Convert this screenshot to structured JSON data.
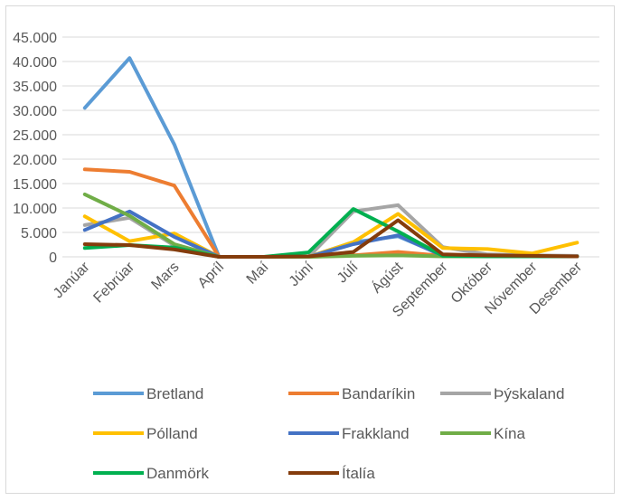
{
  "chart_data": {
    "type": "line",
    "title": "",
    "xlabel": "",
    "ylabel": "",
    "ylim": [
      0,
      45000
    ],
    "y_ticks": [
      "0",
      "5.000",
      "10.000",
      "15.000",
      "20.000",
      "25.000",
      "30.000",
      "35.000",
      "40.000",
      "45.000"
    ],
    "categories": [
      "Janúar",
      "Febrúar",
      "Mars",
      "Apríl",
      "Maí",
      "Júní",
      "Júlí",
      "Ágúst",
      "September",
      "Október",
      "Nóvember",
      "Desember"
    ],
    "grid": true,
    "legend_position": "bottom",
    "series": [
      {
        "name": "Bretland",
        "color": "#5B9BD5",
        "values": [
          30500,
          40700,
          23000,
          0,
          0,
          0,
          3000,
          4200,
          300,
          200,
          100,
          100
        ]
      },
      {
        "name": "Bandaríkin",
        "color": "#ED7D31",
        "values": [
          17900,
          17400,
          14600,
          0,
          0,
          0,
          300,
          1000,
          200,
          100,
          100,
          100
        ]
      },
      {
        "name": "Þýskaland",
        "color": "#A5A5A5",
        "values": [
          6500,
          8000,
          2300,
          0,
          0,
          0,
          9300,
          10600,
          2000,
          500,
          300,
          200
        ]
      },
      {
        "name": "Pólland",
        "color": "#FFC000",
        "values": [
          8300,
          3200,
          4800,
          0,
          0,
          0,
          3000,
          8800,
          1800,
          1600,
          700,
          2900
        ]
      },
      {
        "name": "Frakkland",
        "color": "#4472C4",
        "values": [
          5500,
          9300,
          4100,
          0,
          0,
          0,
          2600,
          4400,
          200,
          100,
          100,
          100
        ]
      },
      {
        "name": "Kína",
        "color": "#70AD47",
        "values": [
          12800,
          8400,
          2600,
          0,
          0,
          0,
          200,
          300,
          100,
          100,
          100,
          100
        ]
      },
      {
        "name": "Danmörk",
        "color": "#00B050",
        "values": [
          1800,
          2400,
          1900,
          0,
          0,
          900,
          9800,
          5200,
          200,
          100,
          100,
          100
        ]
      },
      {
        "name": "Ítalía",
        "color": "#843C0C",
        "values": [
          2600,
          2400,
          1500,
          0,
          0,
          100,
          1000,
          7500,
          500,
          300,
          200,
          100
        ]
      }
    ]
  }
}
